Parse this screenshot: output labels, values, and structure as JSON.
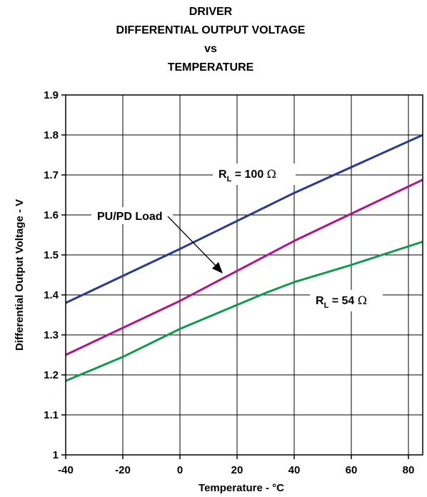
{
  "chart_data": {
    "type": "line",
    "title_lines": [
      "DRIVER",
      "DIFFERENTIAL OUTPUT VOLTAGE",
      "vs",
      "TEMPERATURE"
    ],
    "xlabel": "Temperature - °C",
    "ylabel": "Differential Output Voltage - V",
    "xlim": [
      -40,
      85
    ],
    "ylim": [
      1.0,
      1.9
    ],
    "x_ticks": [
      -40,
      -20,
      0,
      20,
      40,
      60,
      80
    ],
    "x_tick_labels": [
      "-40",
      "-20",
      "0",
      "20",
      "40",
      "60",
      "80"
    ],
    "y_ticks": [
      1.0,
      1.1,
      1.2,
      1.3,
      1.4,
      1.5,
      1.6,
      1.7,
      1.8,
      1.9
    ],
    "y_tick_labels": [
      "1",
      "1.1",
      "1.2",
      "1.3",
      "1.4",
      "1.5",
      "1.6",
      "1.7",
      "1.8",
      "1.9"
    ],
    "grid": true,
    "series": [
      {
        "key": "rl100",
        "color": "#2b3a8f",
        "x": [
          -40,
          0,
          40,
          85
        ],
        "y": [
          1.38,
          1.515,
          1.655,
          1.8
        ]
      },
      {
        "key": "pupd",
        "color": "#b0168a",
        "x": [
          -40,
          0,
          40,
          85
        ],
        "y": [
          1.25,
          1.385,
          1.535,
          1.688
        ]
      },
      {
        "key": "rl54",
        "color": "#0f9a4c",
        "x": [
          -40,
          -20,
          0,
          20,
          30,
          40,
          60,
          85
        ],
        "y": [
          1.185,
          1.245,
          1.315,
          1.375,
          1.405,
          1.432,
          1.475,
          1.533
        ]
      }
    ],
    "annotations": [
      {
        "key": "rl100",
        "main": "R",
        "sub": "L",
        "rest": " = 100 ",
        "unit": "Ω"
      },
      {
        "key": "pupd",
        "text": "PU/PD Load"
      },
      {
        "key": "rl54",
        "main": "R",
        "sub": "L",
        "rest": " = 54 ",
        "unit": "Ω"
      }
    ]
  }
}
